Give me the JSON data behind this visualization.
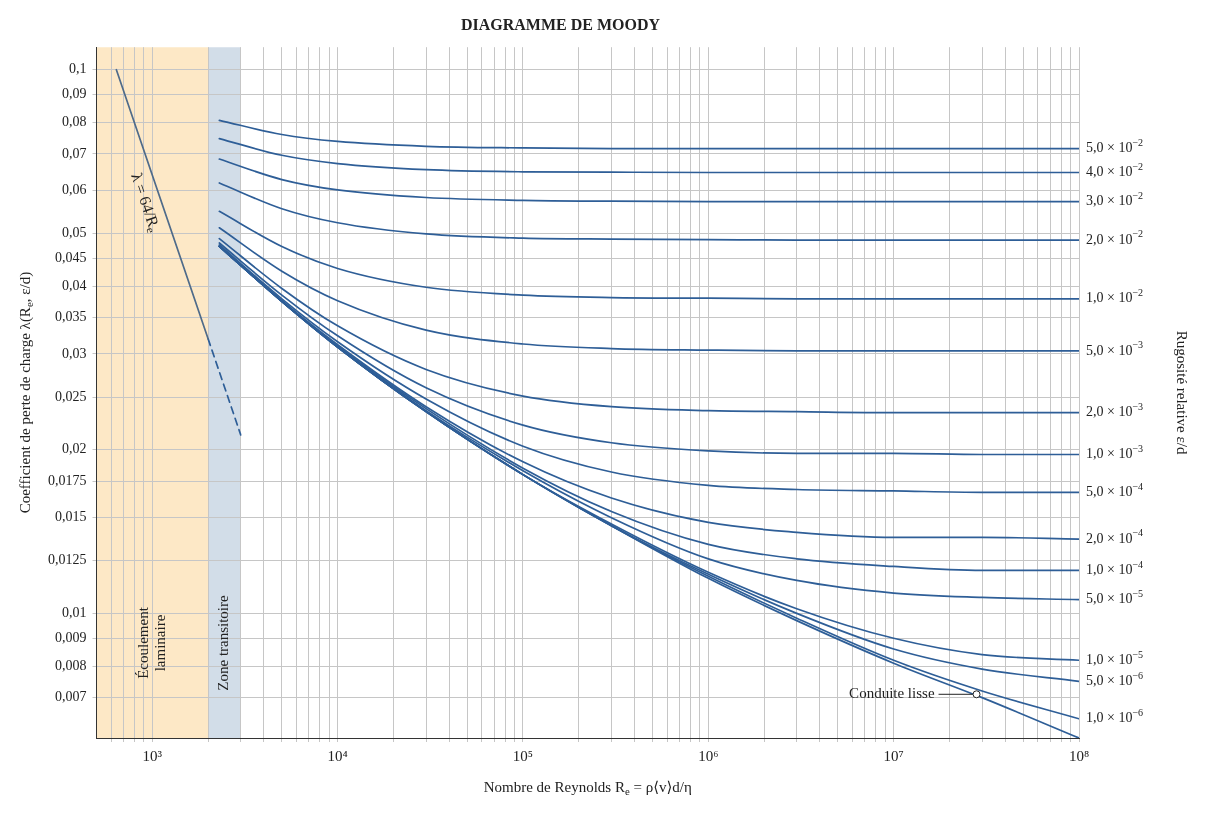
{
  "chart_data": {
    "type": "line",
    "title": "DIAGRAMME DE MOODY",
    "xlabel": "Nombre de Reynolds R$_{e}$ = ρ⟨v⟩d/η",
    "ylabel": "Coefficient de perte de charge λ(R$_{e}$, ε/d)",
    "log": "xy",
    "grid": true,
    "legend": false,
    "marker": "none",
    "line_style": "solid",
    "xlim": [
      500,
      100000000
    ],
    "ylim": [
      0.0059,
      0.11
    ],
    "xticks": [
      {
        "value": 600,
        "label": null
      },
      {
        "value": 700,
        "label": null
      },
      {
        "value": 800,
        "label": null
      },
      {
        "value": 900,
        "label": null
      },
      {
        "value": 1000,
        "label": "10³"
      },
      {
        "value": 2000,
        "label": null
      },
      {
        "value": 3000,
        "label": null
      },
      {
        "value": 4000,
        "label": null
      },
      {
        "value": 5000,
        "label": null
      },
      {
        "value": 6000,
        "label": null
      },
      {
        "value": 7000,
        "label": null
      },
      {
        "value": 8000,
        "label": null
      },
      {
        "value": 9000,
        "label": null
      },
      {
        "value": 10000,
        "label": "10⁴"
      },
      {
        "value": 20000,
        "label": null
      },
      {
        "value": 30000,
        "label": null
      },
      {
        "value": 40000,
        "label": null
      },
      {
        "value": 50000,
        "label": null
      },
      {
        "value": 60000,
        "label": null
      },
      {
        "value": 70000,
        "label": null
      },
      {
        "value": 80000,
        "label": null
      },
      {
        "value": 90000,
        "label": null
      },
      {
        "value": 100000,
        "label": "10⁵"
      },
      {
        "value": 200000,
        "label": null
      },
      {
        "value": 300000,
        "label": null
      },
      {
        "value": 400000,
        "label": null
      },
      {
        "value": 500000,
        "label": null
      },
      {
        "value": 600000,
        "label": null
      },
      {
        "value": 700000,
        "label": null
      },
      {
        "value": 800000,
        "label": null
      },
      {
        "value": 900000,
        "label": null
      },
      {
        "value": 1000000,
        "label": "10⁶"
      },
      {
        "value": 2000000,
        "label": null
      },
      {
        "value": 3000000,
        "label": null
      },
      {
        "value": 4000000,
        "label": null
      },
      {
        "value": 5000000,
        "label": null
      },
      {
        "value": 6000000,
        "label": null
      },
      {
        "value": 7000000,
        "label": null
      },
      {
        "value": 8000000,
        "label": null
      },
      {
        "value": 9000000,
        "label": null
      },
      {
        "value": 10000000,
        "label": "10⁷"
      },
      {
        "value": 20000000,
        "label": null
      },
      {
        "value": 30000000,
        "label": null
      },
      {
        "value": 40000000,
        "label": null
      },
      {
        "value": 50000000,
        "label": null
      },
      {
        "value": 60000000,
        "label": null
      },
      {
        "value": 70000000,
        "label": null
      },
      {
        "value": 80000000,
        "label": null
      },
      {
        "value": 90000000,
        "label": null
      },
      {
        "value": 100000000,
        "label": "10⁸"
      }
    ],
    "yticks": [
      {
        "value": 0.1,
        "label": "0,1"
      },
      {
        "value": 0.09,
        "label": "0,09"
      },
      {
        "value": 0.08,
        "label": "0,08"
      },
      {
        "value": 0.07,
        "label": "0,07"
      },
      {
        "value": 0.06,
        "label": "0,06"
      },
      {
        "value": 0.05,
        "label": "0,05"
      },
      {
        "value": 0.045,
        "label": "0,045"
      },
      {
        "value": 0.04,
        "label": "0,04"
      },
      {
        "value": 0.035,
        "label": "0,035"
      },
      {
        "value": 0.03,
        "label": "0,03"
      },
      {
        "value": 0.025,
        "label": "0,025"
      },
      {
        "value": 0.02,
        "label": "0,02"
      },
      {
        "value": 0.0175,
        "label": "0,0175"
      },
      {
        "value": 0.015,
        "label": "0,015"
      },
      {
        "value": 0.0125,
        "label": "0,0125"
      },
      {
        "value": 0.01,
        "label": "0,01"
      },
      {
        "value": 0.009,
        "label": "0,009"
      },
      {
        "value": 0.008,
        "label": "0,008"
      },
      {
        "value": 0.007,
        "label": "0,007"
      }
    ],
    "bands": [
      {
        "axis": "x",
        "from": 500,
        "to": 2000,
        "label": "Écoulement laminaire",
        "color": "#fde8c6"
      },
      {
        "axis": "x",
        "from": 2000,
        "to": 3000,
        "label": "Zone transitoire",
        "color": "#d2dde8"
      }
    ],
    "annotations": [
      {
        "text": "λ = 64/R$_{e}$",
        "x": 1100,
        "y": 0.0582
      },
      "Rugosité relative ε/d",
      {
        "text": "Conduite lisse",
        "x": 28000000,
        "y": 0.0071
      }
    ],
    "x": [
      2300,
      5000,
      10000,
      30000,
      100000,
      300000,
      1000000,
      3000000,
      10000000,
      30000000,
      100000000
    ],
    "series": [
      {
        "name": "5,0 × 10$^{−2}$",
        "color": "#2e5e97",
        "values": [
          0.0807,
          0.076,
          0.0738,
          0.0723,
          0.0718,
          0.0716,
          0.0716,
          0.0716,
          0.0716,
          0.0716,
          0.0716
        ]
      },
      {
        "name": "4,0 × 10$^{−2}$",
        "color": "#2e5e97",
        "values": [
          0.0747,
          0.0696,
          0.0672,
          0.0655,
          0.0649,
          0.0648,
          0.0647,
          0.0647,
          0.0647,
          0.0647,
          0.0647
        ]
      },
      {
        "name": "3,0 × 10$^{−2}$",
        "color": "#2e5e97",
        "values": [
          0.0685,
          0.0628,
          0.0601,
          0.0582,
          0.0575,
          0.0573,
          0.0572,
          0.0572,
          0.0572,
          0.0572,
          0.0572
        ]
      },
      {
        "name": "2,0 × 10$^{−2}$",
        "color": "#2e5e97",
        "values": [
          0.0619,
          0.0555,
          0.0523,
          0.0499,
          0.049,
          0.0488,
          0.0487,
          0.0486,
          0.0486,
          0.0486,
          0.0486
        ]
      },
      {
        "name": "1,0 × 10$^{−2}$",
        "color": "#2e5e97",
        "values": [
          0.0549,
          0.0473,
          0.0431,
          0.0398,
          0.0385,
          0.0381,
          0.038,
          0.0379,
          0.0379,
          0.0379,
          0.0379
        ]
      },
      {
        "name": "5,0 × 10$^{−3}$",
        "color": "#2e5e97",
        "values": [
          0.0512,
          0.0426,
          0.0376,
          0.0332,
          0.0313,
          0.0307,
          0.0305,
          0.0304,
          0.0304,
          0.0304,
          0.0304
        ]
      },
      {
        "name": "2,0 × 10$^{−3}$",
        "color": "#2e5e97",
        "values": [
          0.0489,
          0.0396,
          0.0338,
          0.0281,
          0.0251,
          0.024,
          0.0236,
          0.0235,
          0.0234,
          0.0234,
          0.0234
        ]
      },
      {
        "name": "1,0 × 10$^{−3}$",
        "color": "#2e5e97",
        "values": [
          0.048,
          0.0385,
          0.0324,
          0.026,
          0.0222,
          0.0206,
          0.0199,
          0.0197,
          0.0197,
          0.0196,
          0.0196
        ]
      },
      {
        "name": "5,0 × 10$^{−4}$",
        "color": "#2e5e97",
        "values": [
          0.0476,
          0.0379,
          0.0316,
          0.0248,
          0.0203,
          0.0182,
          0.0172,
          0.0169,
          0.0168,
          0.0167,
          0.0167
        ]
      },
      {
        "name": "2,0 × 10$^{−4}$",
        "color": "#2e5e97",
        "values": [
          0.0474,
          0.0376,
          0.0312,
          0.024,
          0.019,
          0.0163,
          0.0147,
          0.0141,
          0.0138,
          0.0138,
          0.0137
        ]
      },
      {
        "name": "1,0 × 10$^{−4}$",
        "color": "#2e5e97",
        "values": [
          0.0474,
          0.0375,
          0.031,
          0.0238,
          0.0185,
          0.0154,
          0.0134,
          0.0126,
          0.0122,
          0.012,
          0.012
        ]
      },
      {
        "name": "5,0 × 10$^{−5}$",
        "color": "#2e5e97",
        "values": [
          0.0473,
          0.0375,
          0.0309,
          0.0236,
          0.0183,
          0.015,
          0.0126,
          0.0115,
          0.0109,
          0.0107,
          0.0106
        ]
      },
      {
        "name": "1,0 × 10$^{−5}$",
        "color": "#2e5e97",
        "values": [
          0.0473,
          0.0375,
          0.0309,
          0.0235,
          0.018,
          0.0146,
          0.0119,
          0.0102,
          0.009,
          0.0084,
          0.0082
        ]
      },
      {
        "name": "5,0 × 10$^{−6}$",
        "color": "#2e5e97",
        "values": [
          0.0473,
          0.0375,
          0.0309,
          0.0235,
          0.018,
          0.0145,
          0.0118,
          0.01,
          0.0086,
          0.0079,
          0.0075
        ]
      },
      {
        "name": "1,0 × 10$^{−6}$",
        "color": "#2e5e97",
        "values": [
          0.0473,
          0.0375,
          0.0309,
          0.0235,
          0.018,
          0.0145,
          0.0117,
          0.0098,
          0.0082,
          0.0072,
          0.0064
        ]
      },
      {
        "color": "#2e5e97",
        "values": [
          0.0473,
          0.0375,
          0.0309,
          0.0235,
          0.018,
          0.0145,
          0.0116,
          0.0097,
          0.0081,
          0.007,
          0.0059
        ]
      },
      {
        "type": "line",
        "color": "#4f6b8a",
        "x": [
          640,
          2000
        ],
        "values": [
          0.1,
          0.032
        ]
      },
      {
        "type": "line",
        "color": "#2e5e97",
        "line_style": "dashed",
        "x": [
          2000,
          3000
        ],
        "values": [
          0.032,
          0.0213
        ]
      }
    ]
  }
}
